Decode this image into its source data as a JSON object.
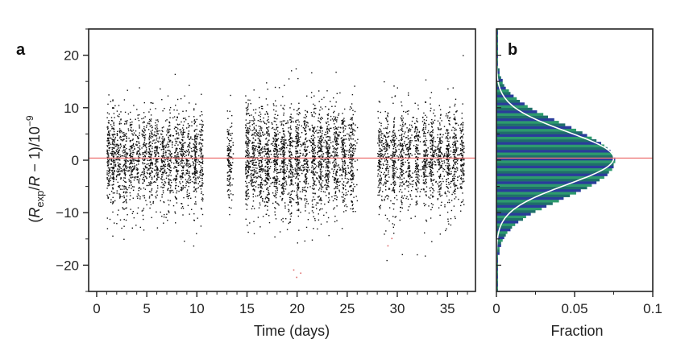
{
  "chart_data": [
    {
      "panel": "a",
      "type": "scatter",
      "xlabel": "Time (days)",
      "ylabel": "(R_exp/R − 1)/10⁻⁹",
      "ylabel_parts": {
        "open": "(",
        "R1": "R",
        "sub": "exp",
        "mid": "/",
        "R2": "R",
        "tail": " − 1)/10",
        "sup": "−9"
      },
      "xlim": [
        -0.8,
        37.8
      ],
      "ylim": [
        -25,
        25
      ],
      "xticks": [
        0,
        5,
        10,
        15,
        20,
        25,
        30,
        35
      ],
      "yticks": [
        -20,
        -10,
        0,
        10,
        20
      ],
      "ytick_labels": [
        "−20",
        "−10",
        "0",
        "10",
        "20"
      ],
      "reference_line": {
        "y": 0.4,
        "color": "#ee7777"
      },
      "point_color": "#111111",
      "outlier_color": "#dd6666",
      "clusters": [
        {
          "x": [
            1.0,
            10.6
          ],
          "n": 2000,
          "sd": 4.6,
          "stripe_days": [
            1.1,
            1.6,
            2.2,
            2.8,
            3.4,
            4.1,
            4.7,
            5.3,
            5.9,
            6.6,
            7.2,
            7.9,
            8.5,
            9.1,
            9.8,
            10.4
          ]
        },
        {
          "x": [
            13.0,
            13.6
          ],
          "n": 140,
          "sd": 4.6,
          "stripe_days": [
            13.2
          ]
        },
        {
          "x": [
            14.8,
            26.0
          ],
          "n": 2600,
          "sd": 5.0,
          "stripe_days": [
            15.0,
            15.6,
            16.3,
            17.0,
            17.8,
            18.6,
            19.3,
            20.0,
            20.8,
            21.6,
            22.3,
            23.0,
            23.8,
            24.6,
            25.4
          ]
        },
        {
          "x": [
            28.0,
            36.6
          ],
          "n": 1700,
          "sd": 4.6,
          "stripe_days": [
            28.2,
            28.9,
            29.6,
            30.4,
            31.1,
            31.9,
            32.7,
            33.4,
            34.2,
            35.0,
            35.7,
            36.4
          ]
        }
      ],
      "outliers": [
        {
          "x": 19.6,
          "y": -20.8
        },
        {
          "x": 19.9,
          "y": -22.2
        },
        {
          "x": 20.3,
          "y": -21.4
        },
        {
          "x": 29.0,
          "y": -16.2
        },
        {
          "x": 29.4,
          "y": -14.8
        }
      ]
    },
    {
      "panel": "b",
      "type": "bar",
      "orientation": "horizontal",
      "xlabel": "Fraction",
      "xlim": [
        0,
        0.1
      ],
      "xticks": [
        0,
        0.05,
        0.1
      ],
      "xtick_labels": [
        "0",
        "0.05",
        "0.1"
      ],
      "ylim": [
        -25,
        25
      ],
      "bin_width": 0.5,
      "bins": {
        "centers": [
          -24.75,
          -24.25,
          -23.75,
          -23.25,
          -22.75,
          -22.25,
          -21.75,
          -21.25,
          -20.75,
          -20.25,
          -19.75,
          -19.25,
          -18.75,
          -18.25,
          -17.75,
          -17.25,
          -16.75,
          -16.25,
          -15.75,
          -15.25,
          -14.75,
          -14.25,
          -13.75,
          -13.25,
          -12.75,
          -12.25,
          -11.75,
          -11.25,
          -10.75,
          -10.25,
          -9.75,
          -9.25,
          -8.75,
          -8.25,
          -7.75,
          -7.25,
          -6.75,
          -6.25,
          -5.75,
          -5.25,
          -4.75,
          -4.25,
          -3.75,
          -3.25,
          -2.75,
          -2.25,
          -1.75,
          -1.25,
          -0.75,
          -0.25,
          0.25,
          0.75,
          1.25,
          1.75,
          2.25,
          2.75,
          3.25,
          3.75,
          4.25,
          4.75,
          5.25,
          5.75,
          6.25,
          6.75,
          7.25,
          7.75,
          8.25,
          8.75,
          9.25,
          9.75,
          10.25,
          10.75,
          11.25,
          11.75,
          12.25,
          12.75,
          13.25,
          13.75,
          14.25,
          14.75,
          15.25,
          15.75,
          16.25,
          16.75,
          17.25,
          17.75,
          18.25,
          18.75,
          19.25,
          19.75,
          20.25,
          20.75,
          21.25,
          21.75,
          22.25,
          22.75,
          23.25,
          23.75,
          24.25,
          24.75
        ],
        "fractions": [
          0.001,
          0.001,
          0.001,
          0.001,
          0.001,
          0.001,
          0.001,
          0.001,
          0.001,
          0.001,
          0.001,
          0.001,
          0.001,
          0.001,
          0.002,
          0.002,
          0.002,
          0.003,
          0.003,
          0.004,
          0.005,
          0.006,
          0.007,
          0.009,
          0.01,
          0.012,
          0.014,
          0.017,
          0.019,
          0.022,
          0.025,
          0.029,
          0.032,
          0.036,
          0.04,
          0.043,
          0.047,
          0.051,
          0.054,
          0.058,
          0.061,
          0.064,
          0.066,
          0.069,
          0.071,
          0.072,
          0.074,
          0.075,
          0.075,
          0.076,
          0.076,
          0.075,
          0.074,
          0.073,
          0.071,
          0.069,
          0.067,
          0.064,
          0.061,
          0.058,
          0.055,
          0.051,
          0.048,
          0.044,
          0.04,
          0.037,
          0.033,
          0.03,
          0.026,
          0.023,
          0.02,
          0.018,
          0.015,
          0.013,
          0.011,
          0.009,
          0.008,
          0.006,
          0.005,
          0.004,
          0.004,
          0.003,
          0.002,
          0.002,
          0.002,
          0.001,
          0.001,
          0.001,
          0.001,
          0.001,
          0.001,
          0.001,
          0.001,
          0.001,
          0.001,
          0.001,
          0.001,
          0.001,
          0.001,
          0.001
        ]
      },
      "fit_curve": {
        "mean": 0.4,
        "sd": 5.0,
        "peak": 0.075,
        "color": "#ffffff"
      },
      "bar_colors": [
        "#1f6f6a",
        "#2d9b6d",
        "#2a3c9b"
      ],
      "reference_line": {
        "y": 0.4,
        "color": "#ee7777"
      }
    }
  ]
}
